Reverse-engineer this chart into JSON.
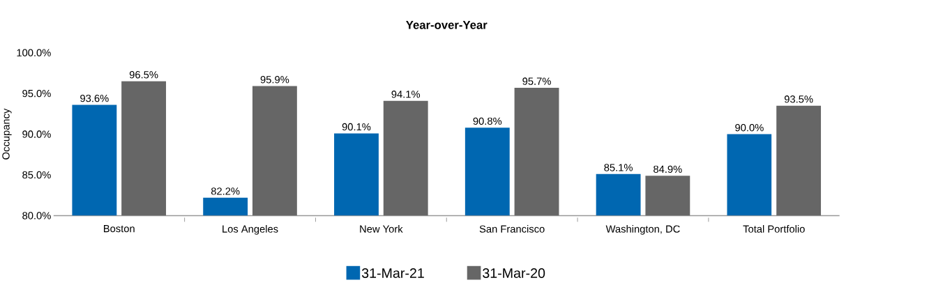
{
  "chart_data": {
    "type": "bar",
    "title": "Year-over-Year",
    "ylabel": "Occupancy",
    "categories": [
      "Boston",
      "Los Angeles",
      "New York",
      "San Francisco",
      "Washington, DC",
      "Total Portfolio"
    ],
    "series": [
      {
        "name": "31-Mar-21",
        "color": "#0067b1",
        "values": [
          93.6,
          82.2,
          90.1,
          90.8,
          85.1,
          90.0
        ],
        "value_labels": [
          "93.6%",
          "82.2%",
          "90.1%",
          "90.8%",
          "85.1%",
          "90.0%"
        ]
      },
      {
        "name": "31-Mar-20",
        "color": "#666666",
        "values": [
          96.5,
          95.9,
          94.1,
          95.7,
          84.9,
          93.5
        ],
        "value_labels": [
          "96.5%",
          "95.9%",
          "94.1%",
          "95.7%",
          "84.9%",
          "93.5%"
        ]
      }
    ],
    "ylim": [
      80,
      100
    ],
    "yticks": [
      {
        "value": 80,
        "label": "80.0%"
      },
      {
        "value": 85,
        "label": "85.0%"
      },
      {
        "value": 90,
        "label": "90.0%"
      },
      {
        "value": 95,
        "label": "95.0%"
      },
      {
        "value": 100,
        "label": "100.0%"
      }
    ],
    "grid": false,
    "legend": "bottom"
  }
}
